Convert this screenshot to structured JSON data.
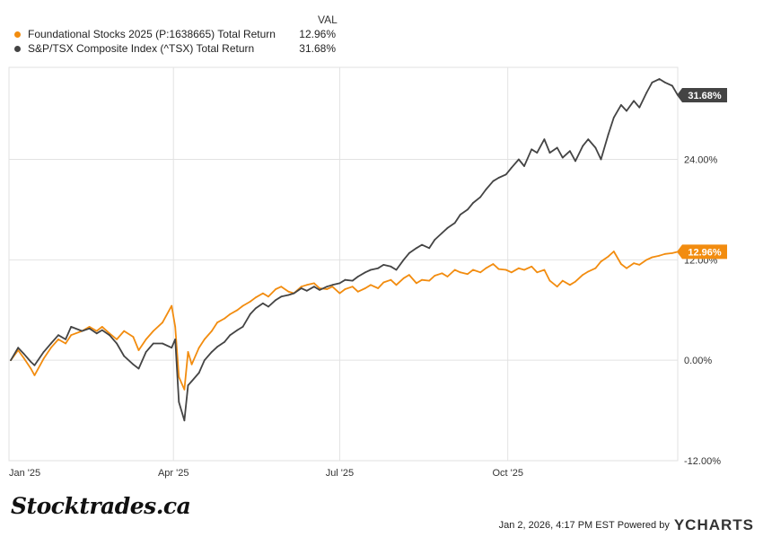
{
  "legend": {
    "header": "VAL",
    "items": [
      {
        "name": "Foundational Stocks 2025 (P:1638665) Total Return",
        "value": "12.96%",
        "color": "#f28c0f"
      },
      {
        "name": "S&P/TSX Composite Index (^TSX) Total Return",
        "value": "31.68%",
        "color": "#444444"
      }
    ]
  },
  "footer": {
    "brand": "Stocktrades.ca",
    "timestamp": "Jan 2, 2026, 4:17 PM EST",
    "powered_by": "Powered by",
    "provider": "YCHARTS"
  },
  "chart_data": {
    "type": "line",
    "x_type": "date",
    "xlim": [
      "2025-01-01",
      "2026-01-02"
    ],
    "ylim": [
      -12,
      35
    ],
    "y_ticks": [
      {
        "value": 24,
        "label": "24.00%"
      },
      {
        "value": 12,
        "label": "12.00%"
      },
      {
        "value": 0,
        "label": "0.00%"
      },
      {
        "value": -12,
        "label": "-12.00%"
      }
    ],
    "x_ticks": [
      {
        "date": "2025-01-01",
        "label": "Jan '25"
      },
      {
        "date": "2025-04-01",
        "label": "Apr '25"
      },
      {
        "date": "2025-07-01",
        "label": "Jul '25"
      },
      {
        "date": "2025-10-01",
        "label": "Oct '25"
      }
    ],
    "grid": true,
    "legend_position": "top-left",
    "end_labels": [
      "12.96%",
      "31.68%"
    ],
    "series": [
      {
        "name": "Foundational Stocks 2025 (P:1638665) Total Return",
        "color": "#f28c0f",
        "points": [
          [
            "2025-01-02",
            0.0
          ],
          [
            "2025-01-06",
            1.2
          ],
          [
            "2025-01-09",
            0.3
          ],
          [
            "2025-01-13",
            -1.0
          ],
          [
            "2025-01-15",
            -1.8
          ],
          [
            "2025-01-20",
            0.2
          ],
          [
            "2025-01-24",
            1.5
          ],
          [
            "2025-01-28",
            2.5
          ],
          [
            "2025-02-01",
            2.0
          ],
          [
            "2025-02-04",
            3.0
          ],
          [
            "2025-02-10",
            3.5
          ],
          [
            "2025-02-14",
            4.0
          ],
          [
            "2025-02-18",
            3.5
          ],
          [
            "2025-02-21",
            4.0
          ],
          [
            "2025-02-25",
            3.2
          ],
          [
            "2025-03-01",
            2.5
          ],
          [
            "2025-03-05",
            3.5
          ],
          [
            "2025-03-10",
            2.8
          ],
          [
            "2025-03-13",
            1.2
          ],
          [
            "2025-03-17",
            2.5
          ],
          [
            "2025-03-21",
            3.5
          ],
          [
            "2025-03-26",
            4.5
          ],
          [
            "2025-03-31",
            6.5
          ],
          [
            "2025-04-02",
            4.0
          ],
          [
            "2025-04-04",
            -2.0
          ],
          [
            "2025-04-07",
            -3.5
          ],
          [
            "2025-04-09",
            1.0
          ],
          [
            "2025-04-11",
            -0.5
          ],
          [
            "2025-04-15",
            1.5
          ],
          [
            "2025-04-18",
            2.5
          ],
          [
            "2025-04-22",
            3.5
          ],
          [
            "2025-04-25",
            4.5
          ],
          [
            "2025-04-29",
            5.0
          ],
          [
            "2025-05-02",
            5.5
          ],
          [
            "2025-05-06",
            6.0
          ],
          [
            "2025-05-09",
            6.5
          ],
          [
            "2025-05-13",
            7.0
          ],
          [
            "2025-05-16",
            7.5
          ],
          [
            "2025-05-20",
            8.0
          ],
          [
            "2025-05-23",
            7.6
          ],
          [
            "2025-05-27",
            8.5
          ],
          [
            "2025-05-30",
            8.8
          ],
          [
            "2025-06-03",
            8.2
          ],
          [
            "2025-06-06",
            8.0
          ],
          [
            "2025-06-10",
            8.8
          ],
          [
            "2025-06-13",
            9.0
          ],
          [
            "2025-06-17",
            9.2
          ],
          [
            "2025-06-20",
            8.6
          ],
          [
            "2025-06-24",
            8.5
          ],
          [
            "2025-06-27",
            8.8
          ],
          [
            "2025-07-01",
            8.0
          ],
          [
            "2025-07-04",
            8.5
          ],
          [
            "2025-07-08",
            8.8
          ],
          [
            "2025-07-11",
            8.2
          ],
          [
            "2025-07-15",
            8.6
          ],
          [
            "2025-07-18",
            9.0
          ],
          [
            "2025-07-22",
            8.6
          ],
          [
            "2025-07-25",
            9.3
          ],
          [
            "2025-07-29",
            9.6
          ],
          [
            "2025-08-01",
            9.0
          ],
          [
            "2025-08-05",
            9.8
          ],
          [
            "2025-08-08",
            10.2
          ],
          [
            "2025-08-12",
            9.2
          ],
          [
            "2025-08-15",
            9.6
          ],
          [
            "2025-08-19",
            9.5
          ],
          [
            "2025-08-22",
            10.1
          ],
          [
            "2025-08-26",
            10.4
          ],
          [
            "2025-08-29",
            10.0
          ],
          [
            "2025-09-02",
            10.8
          ],
          [
            "2025-09-05",
            10.5
          ],
          [
            "2025-09-09",
            10.3
          ],
          [
            "2025-09-12",
            10.8
          ],
          [
            "2025-09-16",
            10.5
          ],
          [
            "2025-09-19",
            11.0
          ],
          [
            "2025-09-23",
            11.5
          ],
          [
            "2025-09-26",
            10.9
          ],
          [
            "2025-09-30",
            10.8
          ],
          [
            "2025-10-03",
            10.5
          ],
          [
            "2025-10-07",
            11.0
          ],
          [
            "2025-10-10",
            10.8
          ],
          [
            "2025-10-14",
            11.2
          ],
          [
            "2025-10-17",
            10.5
          ],
          [
            "2025-10-21",
            10.8
          ],
          [
            "2025-10-24",
            9.5
          ],
          [
            "2025-10-28",
            8.8
          ],
          [
            "2025-10-31",
            9.5
          ],
          [
            "2025-11-04",
            9.0
          ],
          [
            "2025-11-07",
            9.4
          ],
          [
            "2025-11-11",
            10.2
          ],
          [
            "2025-11-14",
            10.6
          ],
          [
            "2025-11-18",
            11.0
          ],
          [
            "2025-11-21",
            11.8
          ],
          [
            "2025-11-25",
            12.4
          ],
          [
            "2025-11-28",
            13.0
          ],
          [
            "2025-12-02",
            11.5
          ],
          [
            "2025-12-05",
            11.0
          ],
          [
            "2025-12-09",
            11.6
          ],
          [
            "2025-12-12",
            11.4
          ],
          [
            "2025-12-16",
            12.0
          ],
          [
            "2025-12-19",
            12.3
          ],
          [
            "2025-12-23",
            12.5
          ],
          [
            "2025-12-26",
            12.7
          ],
          [
            "2025-12-30",
            12.8
          ],
          [
            "2026-01-02",
            12.96
          ]
        ]
      },
      {
        "name": "S&P/TSX Composite Index (^TSX) Total Return",
        "color": "#444444",
        "points": [
          [
            "2025-01-02",
            0.0
          ],
          [
            "2025-01-06",
            1.5
          ],
          [
            "2025-01-09",
            0.8
          ],
          [
            "2025-01-13",
            -0.2
          ],
          [
            "2025-01-15",
            -0.6
          ],
          [
            "2025-01-20",
            1.0
          ],
          [
            "2025-01-24",
            2.0
          ],
          [
            "2025-01-28",
            3.0
          ],
          [
            "2025-02-01",
            2.5
          ],
          [
            "2025-02-04",
            4.0
          ],
          [
            "2025-02-10",
            3.5
          ],
          [
            "2025-02-14",
            3.8
          ],
          [
            "2025-02-18",
            3.2
          ],
          [
            "2025-02-21",
            3.6
          ],
          [
            "2025-02-25",
            3.0
          ],
          [
            "2025-03-01",
            2.0
          ],
          [
            "2025-03-05",
            0.5
          ],
          [
            "2025-03-10",
            -0.5
          ],
          [
            "2025-03-13",
            -1.0
          ],
          [
            "2025-03-17",
            1.0
          ],
          [
            "2025-03-21",
            2.0
          ],
          [
            "2025-03-26",
            2.0
          ],
          [
            "2025-03-31",
            1.5
          ],
          [
            "2025-04-02",
            2.5
          ],
          [
            "2025-04-04",
            -5.0
          ],
          [
            "2025-04-07",
            -7.2
          ],
          [
            "2025-04-09",
            -3.0
          ],
          [
            "2025-04-11",
            -2.5
          ],
          [
            "2025-04-15",
            -1.5
          ],
          [
            "2025-04-18",
            0.0
          ],
          [
            "2025-04-22",
            1.0
          ],
          [
            "2025-04-25",
            1.6
          ],
          [
            "2025-04-29",
            2.2
          ],
          [
            "2025-05-02",
            3.0
          ],
          [
            "2025-05-06",
            3.6
          ],
          [
            "2025-05-09",
            4.0
          ],
          [
            "2025-05-13",
            5.5
          ],
          [
            "2025-05-16",
            6.2
          ],
          [
            "2025-05-20",
            6.8
          ],
          [
            "2025-05-23",
            6.4
          ],
          [
            "2025-05-27",
            7.2
          ],
          [
            "2025-05-30",
            7.6
          ],
          [
            "2025-06-03",
            7.8
          ],
          [
            "2025-06-06",
            8.0
          ],
          [
            "2025-06-10",
            8.6
          ],
          [
            "2025-06-13",
            8.3
          ],
          [
            "2025-06-17",
            8.8
          ],
          [
            "2025-06-20",
            8.4
          ],
          [
            "2025-06-24",
            8.8
          ],
          [
            "2025-06-27",
            9.0
          ],
          [
            "2025-07-01",
            9.2
          ],
          [
            "2025-07-04",
            9.6
          ],
          [
            "2025-07-08",
            9.5
          ],
          [
            "2025-07-11",
            10.0
          ],
          [
            "2025-07-15",
            10.5
          ],
          [
            "2025-07-18",
            10.8
          ],
          [
            "2025-07-22",
            11.0
          ],
          [
            "2025-07-25",
            11.4
          ],
          [
            "2025-07-29",
            11.2
          ],
          [
            "2025-08-01",
            10.8
          ],
          [
            "2025-08-05",
            12.0
          ],
          [
            "2025-08-08",
            12.8
          ],
          [
            "2025-08-12",
            13.4
          ],
          [
            "2025-08-15",
            13.8
          ],
          [
            "2025-08-19",
            13.4
          ],
          [
            "2025-08-22",
            14.4
          ],
          [
            "2025-08-26",
            15.2
          ],
          [
            "2025-08-29",
            15.8
          ],
          [
            "2025-09-02",
            16.4
          ],
          [
            "2025-09-05",
            17.4
          ],
          [
            "2025-09-09",
            18.0
          ],
          [
            "2025-09-12",
            18.8
          ],
          [
            "2025-09-16",
            19.5
          ],
          [
            "2025-09-19",
            20.4
          ],
          [
            "2025-09-23",
            21.4
          ],
          [
            "2025-09-26",
            21.8
          ],
          [
            "2025-09-30",
            22.2
          ],
          [
            "2025-10-03",
            23.0
          ],
          [
            "2025-10-07",
            24.0
          ],
          [
            "2025-10-10",
            23.2
          ],
          [
            "2025-10-14",
            25.2
          ],
          [
            "2025-10-17",
            24.8
          ],
          [
            "2025-10-21",
            26.4
          ],
          [
            "2025-10-24",
            24.8
          ],
          [
            "2025-10-28",
            25.4
          ],
          [
            "2025-10-31",
            24.2
          ],
          [
            "2025-11-04",
            25.0
          ],
          [
            "2025-11-07",
            23.8
          ],
          [
            "2025-11-11",
            25.6
          ],
          [
            "2025-11-14",
            26.4
          ],
          [
            "2025-11-18",
            25.4
          ],
          [
            "2025-11-21",
            24.0
          ],
          [
            "2025-11-25",
            27.0
          ],
          [
            "2025-11-28",
            29.0
          ],
          [
            "2025-12-02",
            30.5
          ],
          [
            "2025-12-05",
            29.8
          ],
          [
            "2025-12-09",
            31.0
          ],
          [
            "2025-12-12",
            30.2
          ],
          [
            "2025-12-16",
            32.0
          ],
          [
            "2025-12-19",
            33.2
          ],
          [
            "2025-12-23",
            33.6
          ],
          [
            "2025-12-26",
            33.2
          ],
          [
            "2025-12-30",
            32.8
          ],
          [
            "2026-01-02",
            31.68
          ]
        ]
      }
    ]
  }
}
